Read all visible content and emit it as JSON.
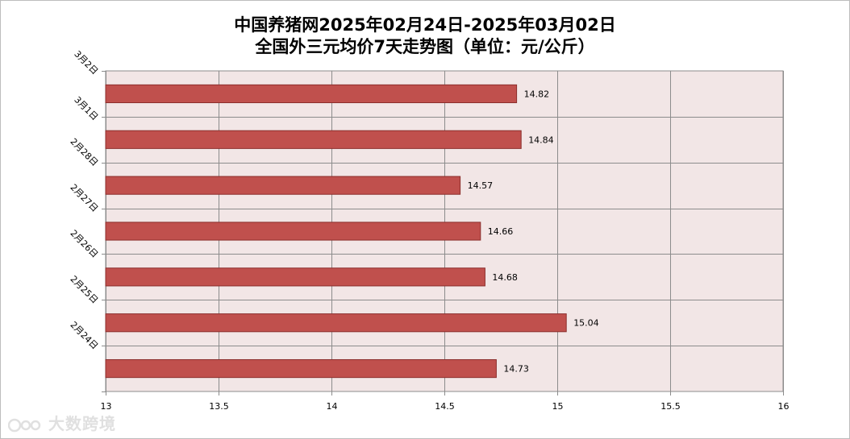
{
  "chart_data": {
    "type": "bar",
    "orientation": "horizontal",
    "title_line1": "中国养猪网2025年02月24日-2025年03月02日",
    "title_line2": "全国外三元均价7天走势图（单位：元/公斤）",
    "categories": [
      "3月2日",
      "3月1日",
      "2月28日",
      "2月27日",
      "2月26日",
      "2月25日",
      "2月24日"
    ],
    "values": [
      14.82,
      14.84,
      14.57,
      14.66,
      14.68,
      15.04,
      14.73
    ],
    "xlim": [
      13,
      16
    ],
    "xticks": [
      "13",
      "13.5",
      "14",
      "14.5",
      "15",
      "15.5",
      "16"
    ],
    "grid": true,
    "bar_color": "#c0504d",
    "plot_background": "#f2e6e6"
  },
  "watermark": "大数跨境"
}
